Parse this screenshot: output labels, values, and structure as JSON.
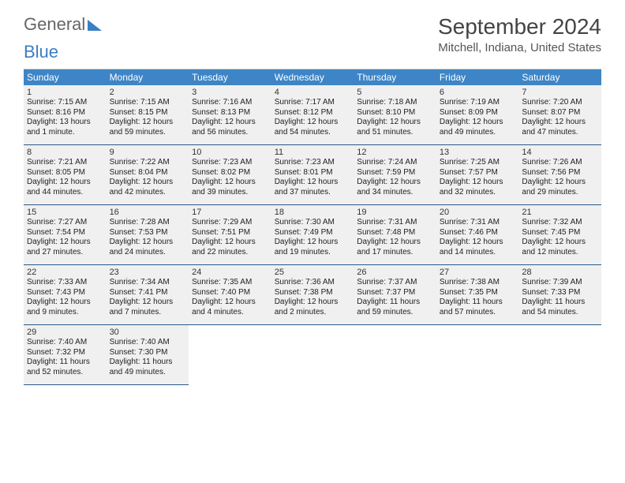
{
  "logo": {
    "general": "General",
    "blue": "Blue"
  },
  "title": "September 2024",
  "location": "Mitchell, Indiana, United States",
  "dow": [
    "Sunday",
    "Monday",
    "Tuesday",
    "Wednesday",
    "Thursday",
    "Friday",
    "Saturday"
  ],
  "colors": {
    "header_bg": "#3d85c6",
    "cell_bg": "#f0f0f0",
    "rule": "#2a5a8a",
    "logo_blue": "#3a7fc4"
  },
  "days": [
    {
      "n": 1,
      "sunrise": "7:15 AM",
      "sunset": "8:16 PM",
      "daylight": "13 hours and 1 minute."
    },
    {
      "n": 2,
      "sunrise": "7:15 AM",
      "sunset": "8:15 PM",
      "daylight": "12 hours and 59 minutes."
    },
    {
      "n": 3,
      "sunrise": "7:16 AM",
      "sunset": "8:13 PM",
      "daylight": "12 hours and 56 minutes."
    },
    {
      "n": 4,
      "sunrise": "7:17 AM",
      "sunset": "8:12 PM",
      "daylight": "12 hours and 54 minutes."
    },
    {
      "n": 5,
      "sunrise": "7:18 AM",
      "sunset": "8:10 PM",
      "daylight": "12 hours and 51 minutes."
    },
    {
      "n": 6,
      "sunrise": "7:19 AM",
      "sunset": "8:09 PM",
      "daylight": "12 hours and 49 minutes."
    },
    {
      "n": 7,
      "sunrise": "7:20 AM",
      "sunset": "8:07 PM",
      "daylight": "12 hours and 47 minutes."
    },
    {
      "n": 8,
      "sunrise": "7:21 AM",
      "sunset": "8:05 PM",
      "daylight": "12 hours and 44 minutes."
    },
    {
      "n": 9,
      "sunrise": "7:22 AM",
      "sunset": "8:04 PM",
      "daylight": "12 hours and 42 minutes."
    },
    {
      "n": 10,
      "sunrise": "7:23 AM",
      "sunset": "8:02 PM",
      "daylight": "12 hours and 39 minutes."
    },
    {
      "n": 11,
      "sunrise": "7:23 AM",
      "sunset": "8:01 PM",
      "daylight": "12 hours and 37 minutes."
    },
    {
      "n": 12,
      "sunrise": "7:24 AM",
      "sunset": "7:59 PM",
      "daylight": "12 hours and 34 minutes."
    },
    {
      "n": 13,
      "sunrise": "7:25 AM",
      "sunset": "7:57 PM",
      "daylight": "12 hours and 32 minutes."
    },
    {
      "n": 14,
      "sunrise": "7:26 AM",
      "sunset": "7:56 PM",
      "daylight": "12 hours and 29 minutes."
    },
    {
      "n": 15,
      "sunrise": "7:27 AM",
      "sunset": "7:54 PM",
      "daylight": "12 hours and 27 minutes."
    },
    {
      "n": 16,
      "sunrise": "7:28 AM",
      "sunset": "7:53 PM",
      "daylight": "12 hours and 24 minutes."
    },
    {
      "n": 17,
      "sunrise": "7:29 AM",
      "sunset": "7:51 PM",
      "daylight": "12 hours and 22 minutes."
    },
    {
      "n": 18,
      "sunrise": "7:30 AM",
      "sunset": "7:49 PM",
      "daylight": "12 hours and 19 minutes."
    },
    {
      "n": 19,
      "sunrise": "7:31 AM",
      "sunset": "7:48 PM",
      "daylight": "12 hours and 17 minutes."
    },
    {
      "n": 20,
      "sunrise": "7:31 AM",
      "sunset": "7:46 PM",
      "daylight": "12 hours and 14 minutes."
    },
    {
      "n": 21,
      "sunrise": "7:32 AM",
      "sunset": "7:45 PM",
      "daylight": "12 hours and 12 minutes."
    },
    {
      "n": 22,
      "sunrise": "7:33 AM",
      "sunset": "7:43 PM",
      "daylight": "12 hours and 9 minutes."
    },
    {
      "n": 23,
      "sunrise": "7:34 AM",
      "sunset": "7:41 PM",
      "daylight": "12 hours and 7 minutes."
    },
    {
      "n": 24,
      "sunrise": "7:35 AM",
      "sunset": "7:40 PM",
      "daylight": "12 hours and 4 minutes."
    },
    {
      "n": 25,
      "sunrise": "7:36 AM",
      "sunset": "7:38 PM",
      "daylight": "12 hours and 2 minutes."
    },
    {
      "n": 26,
      "sunrise": "7:37 AM",
      "sunset": "7:37 PM",
      "daylight": "11 hours and 59 minutes."
    },
    {
      "n": 27,
      "sunrise": "7:38 AM",
      "sunset": "7:35 PM",
      "daylight": "11 hours and 57 minutes."
    },
    {
      "n": 28,
      "sunrise": "7:39 AM",
      "sunset": "7:33 PM",
      "daylight": "11 hours and 54 minutes."
    },
    {
      "n": 29,
      "sunrise": "7:40 AM",
      "sunset": "7:32 PM",
      "daylight": "11 hours and 52 minutes."
    },
    {
      "n": 30,
      "sunrise": "7:40 AM",
      "sunset": "7:30 PM",
      "daylight": "11 hours and 49 minutes."
    }
  ],
  "labels": {
    "sunrise": "Sunrise: ",
    "sunset": "Sunset: ",
    "daylight": "Daylight: "
  },
  "trailing_empty": 5
}
